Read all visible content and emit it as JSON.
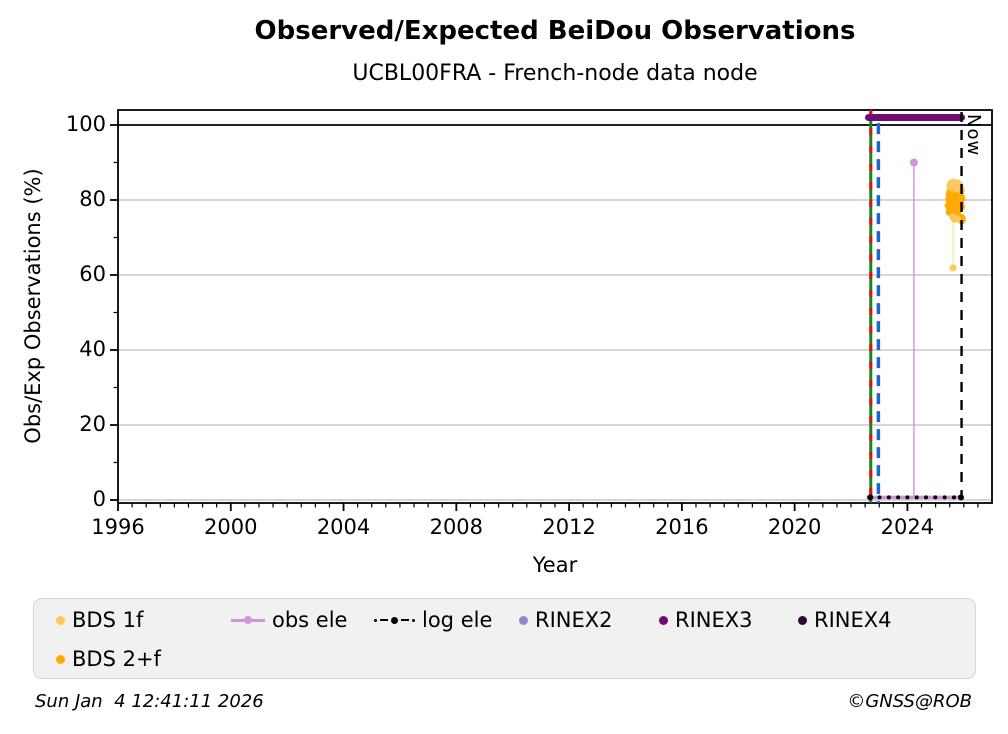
{
  "header": {
    "title": "Observed/Expected BeiDou Observations",
    "subtitle": "UCBL00FRA - French-node data node"
  },
  "footer": {
    "timestamp": "Sun Jan  4 12:41:11 2026",
    "copyright": "©GNSS@ROB"
  },
  "chart_data": {
    "type": "scatter",
    "xlabel": "Year",
    "ylabel": "Obs/Exp Observations (%)",
    "xlim": [
      1996,
      2027
    ],
    "ylim": [
      -0.8,
      104.0
    ],
    "xtick_labels": [
      "1996",
      "2000",
      "2004",
      "2008",
      "2012",
      "2016",
      "2020",
      "2024"
    ],
    "xtick_values": [
      1996,
      2000,
      2004,
      2008,
      2012,
      2016,
      2020,
      2024
    ],
    "ytick_labels": [
      "0",
      "20",
      "40",
      "60",
      "80",
      "100"
    ],
    "ytick_values": [
      0,
      20,
      40,
      60,
      80,
      100
    ],
    "x_minor_step": 0.5,
    "y_minor_values": [
      10,
      30,
      50,
      70,
      90
    ],
    "grid": true,
    "grid_color": "#c8c8c8",
    "hline": {
      "y": 100,
      "color": "#000000"
    },
    "now_line": {
      "x": 2025.92,
      "label": "Now",
      "color": "#000000"
    },
    "event_lines": [
      {
        "name": "receiver-change-line",
        "x": 2022.7,
        "color": "#168716",
        "overlay_color": "#e01010",
        "style": "solid-with-dashes"
      },
      {
        "name": "antenna-change-line",
        "x": 2022.97,
        "color": "#1b66cf",
        "style": "dashed",
        "y_top": 100.5
      }
    ],
    "series": [
      {
        "name": "RINEX3",
        "type": "thick-segment",
        "color": "#730973",
        "y": 102,
        "x0": 2022.62,
        "x1": 2025.92,
        "width": 7
      },
      {
        "name": "obs ele",
        "type": "line-segments",
        "color": "#cf96d6",
        "segments": [
          {
            "pts": [
              [
                2022.62,
                0.7
              ],
              [
                2025.92,
                0.7
              ]
            ],
            "w": 3.5
          },
          {
            "pts": [
              [
                2024.23,
                0.7
              ],
              [
                2024.23,
                90
              ]
            ],
            "w": 1.4
          }
        ],
        "marker_points": [
          [
            2024.23,
            90
          ]
        ],
        "marker_r": 4
      },
      {
        "name": "log ele",
        "type": "dotted-run",
        "color": "#000000",
        "y": 0.7,
        "x0": 2022.68,
        "x1": 2025.9,
        "step": 0.33,
        "r": 2,
        "end_r": 3
      },
      {
        "name": "BDS 2+f",
        "type": "scatter",
        "color": "#ffaa05",
        "r": 4,
        "points": [
          [
            2025.46,
            78.5
          ],
          [
            2025.48,
            80.2
          ],
          [
            2025.5,
            81.5
          ],
          [
            2025.5,
            76.8
          ],
          [
            2025.52,
            79.0
          ],
          [
            2025.53,
            82.3
          ],
          [
            2025.55,
            80.8
          ],
          [
            2025.56,
            77.5
          ],
          [
            2025.57,
            81.0
          ],
          [
            2025.58,
            79.6
          ],
          [
            2025.6,
            82.0
          ],
          [
            2025.6,
            78.0
          ],
          [
            2025.62,
            80.5
          ],
          [
            2025.63,
            76.2
          ],
          [
            2025.64,
            81.8
          ],
          [
            2025.66,
            79.2
          ],
          [
            2025.67,
            82.5
          ],
          [
            2025.68,
            77.0
          ],
          [
            2025.7,
            80.0
          ],
          [
            2025.71,
            81.2
          ],
          [
            2025.72,
            78.4
          ],
          [
            2025.74,
            79.8
          ],
          [
            2025.75,
            82.0
          ],
          [
            2025.76,
            76.5
          ],
          [
            2025.78,
            80.6
          ],
          [
            2025.79,
            78.9
          ],
          [
            2025.81,
            81.4
          ],
          [
            2025.82,
            79.3
          ],
          [
            2025.84,
            80.9
          ],
          [
            2025.85,
            77.8
          ],
          [
            2025.87,
            79.5
          ],
          [
            2025.88,
            81.0
          ],
          [
            2025.9,
            78.2
          ],
          [
            2025.91,
            80.3
          ],
          [
            2025.92,
            75.2
          ],
          [
            2025.93,
            74.6
          ]
        ]
      },
      {
        "name": "BDS 1f",
        "type": "scatter",
        "color": "#ffc85e",
        "r": 3.5,
        "connector": {
          "pts": [
            [
              2025.62,
              74.5
            ],
            [
              2025.62,
              62
            ]
          ],
          "color": "#ffdf9e",
          "w": 1.2
        },
        "points": [
          [
            2025.5,
            83.8
          ],
          [
            2025.54,
            84.5
          ],
          [
            2025.58,
            83.2
          ],
          [
            2025.62,
            84.8
          ],
          [
            2025.66,
            83.6
          ],
          [
            2025.7,
            84.2
          ],
          [
            2025.74,
            83.0
          ],
          [
            2025.78,
            84.6
          ],
          [
            2025.82,
            83.4
          ],
          [
            2025.86,
            84.0
          ],
          [
            2025.89,
            83.1
          ],
          [
            2025.92,
            82.6
          ],
          [
            2025.6,
            75.5
          ],
          [
            2025.68,
            74.8
          ],
          [
            2025.76,
            75.0
          ],
          [
            2025.62,
            61.9
          ]
        ]
      }
    ],
    "legend": {
      "items": [
        {
          "label": "BDS 1f",
          "marker": "dot",
          "color": "#ffc85e"
        },
        {
          "label": "obs ele",
          "marker": "line-dot",
          "color": "#cf96d6"
        },
        {
          "label": "log ele",
          "marker": "dash-dot",
          "color": "#000000"
        },
        {
          "label": "RINEX2",
          "marker": "dot",
          "color": "#9187c6"
        },
        {
          "label": "RINEX3",
          "marker": "dot",
          "color": "#730973"
        },
        {
          "label": "RINEX4",
          "marker": "dot",
          "color": "#2c0a2e"
        },
        {
          "label": "BDS 2+f",
          "marker": "dot",
          "color": "#ffaa05"
        }
      ]
    }
  }
}
